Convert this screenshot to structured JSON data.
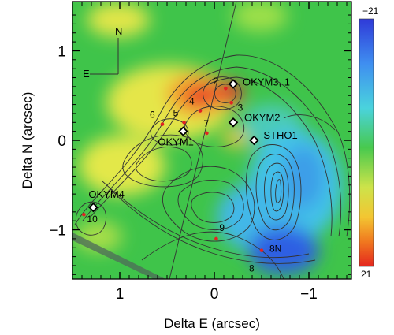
{
  "chart_data": {
    "type": "heatmap",
    "xlabel": "Delta E (arcsec)",
    "ylabel": "Delta N (arcsec)",
    "xlim": [
      1.5,
      -1.45
    ],
    "ylim": [
      -1.55,
      1.55
    ],
    "x_ticks": [
      {
        "value": 1,
        "label": "1"
      },
      {
        "value": 0,
        "label": "0"
      },
      {
        "value": -1,
        "label": "−1"
      }
    ],
    "y_ticks": [
      {
        "value": 1,
        "label": "1"
      },
      {
        "value": 0,
        "label": "0"
      },
      {
        "value": -1,
        "label": "−1"
      }
    ],
    "colorbar": {
      "min": -21,
      "max": 21,
      "top_label": "−21",
      "bottom_label": "21"
    },
    "compass": {
      "north_label": "N",
      "east_label": "E"
    },
    "sources": [
      {
        "label": "OKYM3, 1",
        "x": -0.2,
        "y": 0.63
      },
      {
        "label": "OKYM2",
        "x": -0.2,
        "y": 0.2
      },
      {
        "label": "STHO1",
        "x": -0.42,
        "y": 0.0
      },
      {
        "label": "OKYM1",
        "x": 0.33,
        "y": 0.1
      },
      {
        "label": "OKYM4",
        "x": 1.28,
        "y": -0.75
      }
    ],
    "numbered_points": [
      {
        "label": "2",
        "x": -0.12,
        "y": 0.58
      },
      {
        "label": "3",
        "x": -0.18,
        "y": 0.42
      },
      {
        "label": "4",
        "x": 0.15,
        "y": 0.33
      },
      {
        "label": "5",
        "x": 0.32,
        "y": 0.2
      },
      {
        "label": "6",
        "x": 0.55,
        "y": 0.18
      },
      {
        "label": "7",
        "x": 0.08,
        "y": 0.08
      },
      {
        "label": "9",
        "x": -0.02,
        "y": -1.1
      },
      {
        "label": "8N",
        "x": -0.5,
        "y": -1.23
      },
      {
        "label": "8",
        "x": -0.4,
        "y": -1.57
      },
      {
        "label": "10",
        "x": 1.38,
        "y": -0.83
      }
    ],
    "colors": {
      "background": "#3fc44a",
      "red": "#e8312a",
      "orange": "#f39b2a",
      "yellow": "#e7e84a",
      "cyan": "#42c2e9",
      "blue": "#2f5fe3",
      "marker_red": "#e32222",
      "contour": "#333333"
    }
  }
}
